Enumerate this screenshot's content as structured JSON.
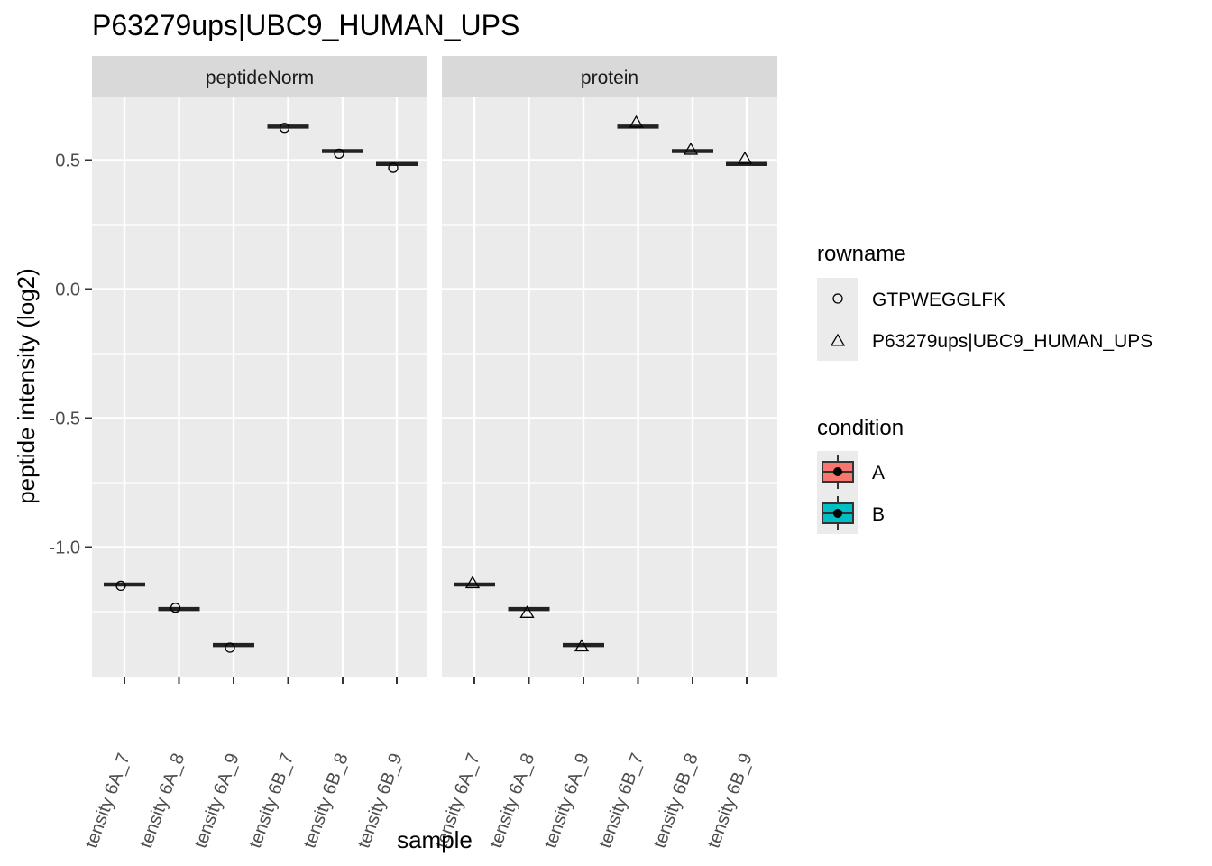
{
  "chart_data": {
    "type": "boxplot",
    "title": "P63279ups|UBC9_HUMAN_UPS",
    "xlabel": "sample",
    "ylabel": "peptide intensity (log2)",
    "ylim": [
      -1.5,
      0.75
    ],
    "y_ticks": [
      0.5,
      0.0,
      -0.5,
      -1.0
    ],
    "y_tick_labels": [
      "0.5",
      "0.0",
      "-0.5",
      "-1.0"
    ],
    "grid": true,
    "categories": [
      "tensity 6A_7",
      "tensity 6A_8",
      "tensity 6A_9",
      "tensity 6B_7",
      "tensity 6B_8",
      "tensity 6B_9"
    ],
    "category_condition": [
      "A",
      "A",
      "A",
      "B",
      "B",
      "B"
    ],
    "panels": [
      {
        "name": "peptideNorm",
        "box_values": [
          -1.145,
          -1.24,
          -1.38,
          0.63,
          0.535,
          0.485
        ],
        "points": [
          {
            "series": "GTPWEGGLFK",
            "values": [
              -1.15,
              -1.235,
              -1.39,
              0.625,
              0.525,
              0.47
            ]
          }
        ]
      },
      {
        "name": "protein",
        "box_values": [
          -1.145,
          -1.24,
          -1.38,
          0.63,
          0.535,
          0.485
        ],
        "points": [
          {
            "series": "P63279ups|UBC9_HUMAN_UPS",
            "values": [
              -1.14,
              -1.255,
              -1.385,
              0.645,
              0.54,
              0.505
            ]
          }
        ]
      }
    ],
    "legend": {
      "placement": "right",
      "rowname": {
        "title": "rowname",
        "items": [
          {
            "label": "GTPWEGGLFK",
            "shape": "circle"
          },
          {
            "label": "P63279ups|UBC9_HUMAN_UPS",
            "shape": "triangle"
          }
        ]
      },
      "condition": {
        "title": "condition",
        "items": [
          {
            "label": "A",
            "color": "#F8766D"
          },
          {
            "label": "B",
            "color": "#00BFC4"
          }
        ]
      }
    },
    "colors": {
      "panel_bg": "#EBEBEB",
      "strip_bg": "#D9D9D9",
      "grid": "#FFFFFF",
      "box": "#222222"
    }
  }
}
